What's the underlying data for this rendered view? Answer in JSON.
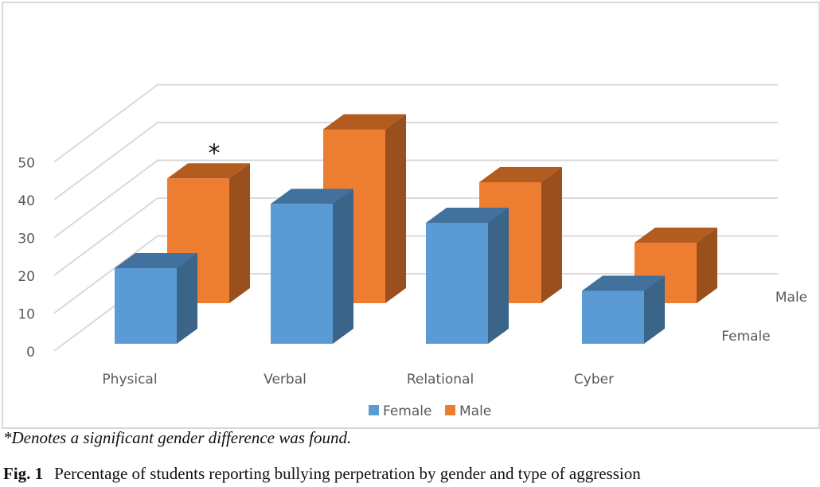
{
  "chart_data": {
    "type": "bar",
    "subtype": "3d-column",
    "title": "",
    "xlabel": "",
    "ylabel": "",
    "categories": [
      "Physical",
      "Verbal",
      "Relational",
      "Cyber"
    ],
    "series": [
      {
        "name": "Female",
        "values": [
          20,
          37,
          32,
          14
        ],
        "color": "#5b9bd5"
      },
      {
        "name": "Male",
        "values": [
          33,
          46,
          32,
          16
        ],
        "color": "#ed7d31"
      }
    ],
    "ylim": [
      0,
      50
    ],
    "yticks": [
      "0",
      "10",
      "20",
      "30",
      "40",
      "50"
    ],
    "depth_axis_labels": [
      "Female",
      "Male"
    ],
    "grid": true,
    "legend": {
      "position": "bottom",
      "entries": [
        "Female",
        "Male"
      ]
    },
    "annotations": [
      {
        "category": "Physical",
        "series": "Male",
        "text": "*"
      }
    ]
  },
  "colors": {
    "female_front": "#5b9bd5",
    "female_top": "#41719c",
    "female_side": "#3a6488",
    "male_front": "#ed7d31",
    "male_top": "#b35c20",
    "male_side": "#99501c",
    "grid": "#d9d9d9",
    "text": "#595959"
  },
  "note": "*Denotes a significant gender difference was found.",
  "caption": {
    "label": "Fig. 1",
    "text": "Percentage of students reporting bullying perpetration by gender and type of aggression"
  }
}
